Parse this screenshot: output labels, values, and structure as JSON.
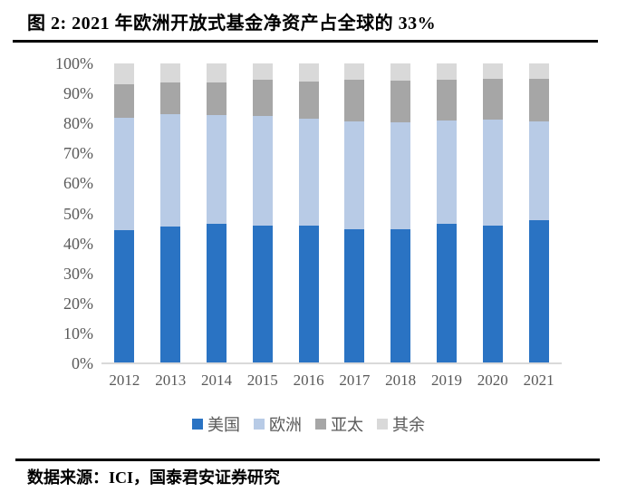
{
  "figure": {
    "title": "图 2: 2021 年欧洲开放式基金净资产占全球的 33%",
    "source": "数据来源：ICI，国泰君安证券研究"
  },
  "chart_data": {
    "type": "bar",
    "stacked": true,
    "unit": "%",
    "title": "2021 年欧洲开放式基金净资产占全球的 33%",
    "xlabel": "",
    "ylabel": "",
    "categories": [
      "2012",
      "2013",
      "2014",
      "2015",
      "2016",
      "2017",
      "2018",
      "2019",
      "2020",
      "2021"
    ],
    "series": [
      {
        "name": "美国",
        "color": "#2a73c3",
        "values": [
          44.5,
          45.6,
          46.4,
          45.8,
          45.8,
          44.8,
          44.8,
          46.6,
          45.8,
          47.8
        ]
      },
      {
        "name": "欧洲",
        "color": "#b8cbe6",
        "values": [
          37.3,
          37.6,
          36.5,
          36.6,
          35.8,
          35.9,
          35.5,
          34.4,
          35.6,
          33.0
        ]
      },
      {
        "name": "亚太",
        "color": "#a6a6a6",
        "values": [
          11.3,
          10.4,
          10.7,
          12.3,
          12.5,
          13.8,
          13.9,
          13.5,
          13.6,
          14.2
        ]
      },
      {
        "name": "其余",
        "color": "#d9d9d9",
        "values": [
          6.9,
          6.4,
          6.4,
          5.3,
          5.9,
          5.5,
          5.8,
          5.5,
          5.0,
          5.0
        ]
      }
    ],
    "yticks": [
      "0%",
      "10%",
      "20%",
      "30%",
      "40%",
      "50%",
      "60%",
      "70%",
      "80%",
      "90%",
      "100%"
    ],
    "ylim": [
      0,
      100
    ],
    "grid": false,
    "legend_position": "bottom",
    "axis_text_color": "#595959",
    "baseline_color": "#d9d9d9"
  }
}
